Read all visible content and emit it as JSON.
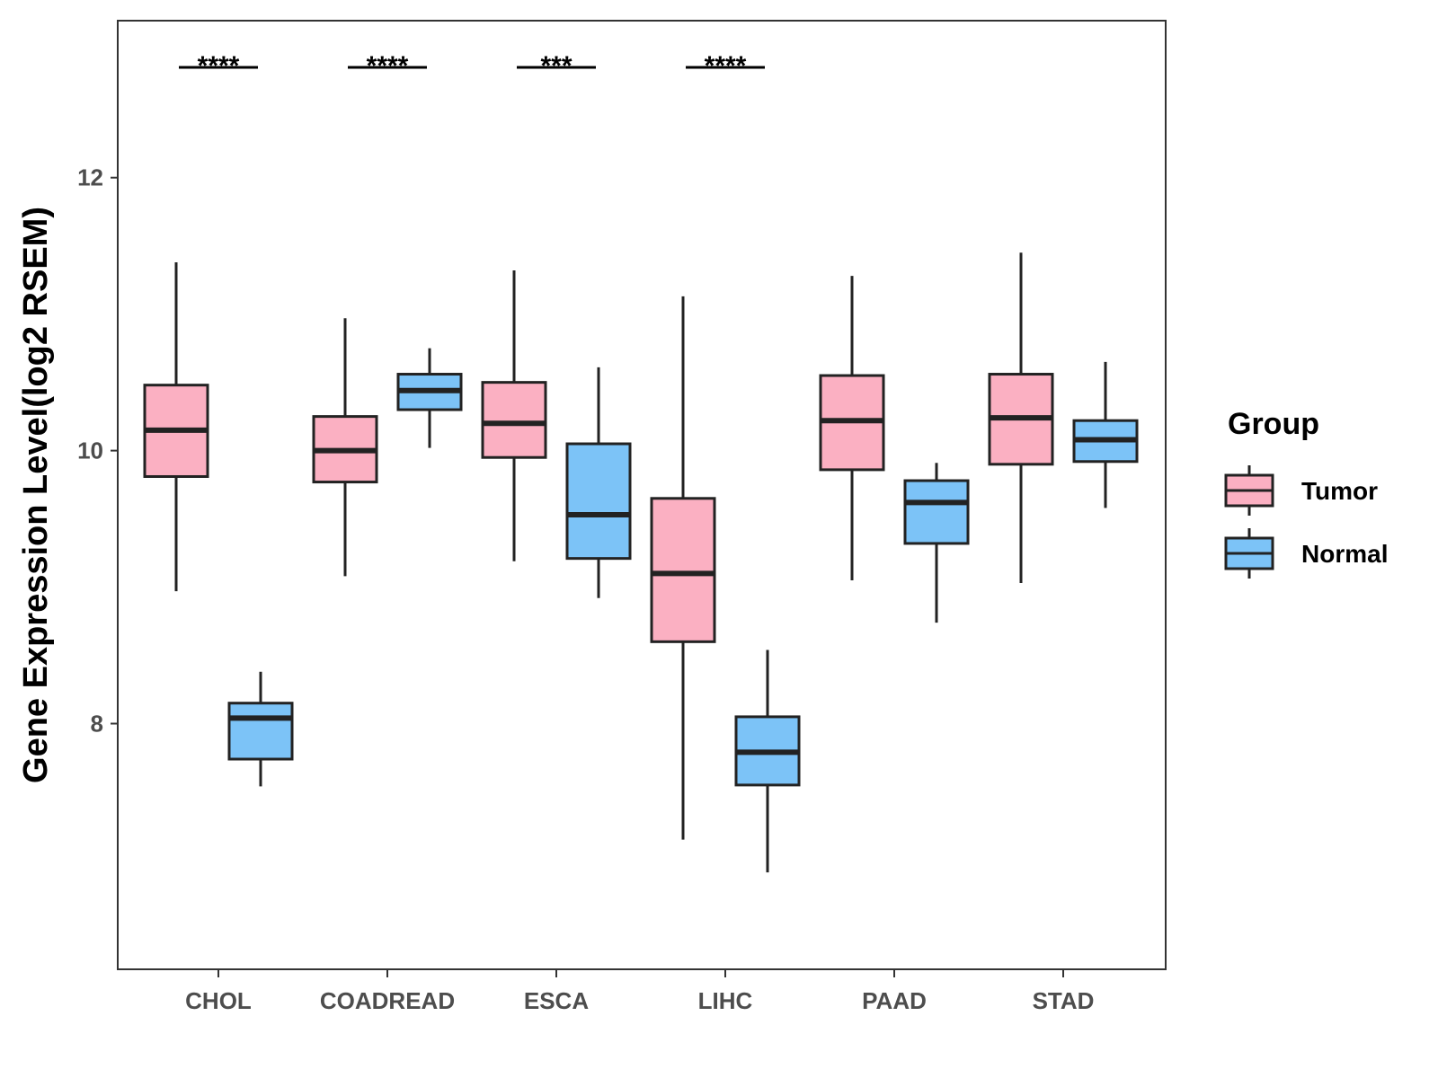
{
  "chart_data": {
    "type": "box",
    "title": "",
    "xlabel": "",
    "ylabel": "Gene Expression Level(log2 RSEM)",
    "ylim": [
      6.2,
      13.15
    ],
    "yticks": [
      8,
      10,
      12
    ],
    "grid": false,
    "categories": [
      "CHOL",
      "COADREAD",
      "ESCA",
      "LIHC",
      "PAAD",
      "STAD"
    ],
    "series": [
      {
        "name": "Tumor",
        "color": "#FBB0C2",
        "boxes": [
          {
            "min": 8.97,
            "q1": 9.81,
            "median": 10.15,
            "q3": 10.48,
            "max": 11.38
          },
          {
            "min": 9.08,
            "q1": 9.77,
            "median": 10.0,
            "q3": 10.25,
            "max": 10.97
          },
          {
            "min": 9.19,
            "q1": 9.95,
            "median": 10.2,
            "q3": 10.5,
            "max": 11.32
          },
          {
            "min": 7.15,
            "q1": 8.6,
            "median": 9.1,
            "q3": 9.65,
            "max": 11.13
          },
          {
            "min": 9.05,
            "q1": 9.86,
            "median": 10.22,
            "q3": 10.55,
            "max": 11.28
          },
          {
            "min": 9.03,
            "q1": 9.9,
            "median": 10.24,
            "q3": 10.56,
            "max": 11.45
          }
        ]
      },
      {
        "name": "Normal",
        "color": "#7CC3F7",
        "boxes": [
          {
            "min": 7.54,
            "q1": 7.74,
            "median": 8.04,
            "q3": 8.15,
            "max": 8.38
          },
          {
            "min": 10.02,
            "q1": 10.3,
            "median": 10.44,
            "q3": 10.56,
            "max": 10.75
          },
          {
            "min": 8.92,
            "q1": 9.21,
            "median": 9.53,
            "q3": 10.05,
            "max": 10.61
          },
          {
            "min": 6.91,
            "q1": 7.55,
            "median": 7.79,
            "q3": 8.05,
            "max": 8.54
          },
          {
            "min": 8.74,
            "q1": 9.32,
            "median": 9.62,
            "q3": 9.78,
            "max": 9.91
          },
          {
            "min": 9.58,
            "q1": 9.92,
            "median": 10.08,
            "q3": 10.22,
            "max": 10.65
          }
        ]
      }
    ],
    "significance": [
      {
        "category": "CHOL",
        "label": "****"
      },
      {
        "category": "COADREAD",
        "label": "****"
      },
      {
        "category": "ESCA",
        "label": "***"
      },
      {
        "category": "LIHC",
        "label": "****"
      }
    ],
    "legend": {
      "title": "Group",
      "position": "right",
      "entries": [
        "Tumor",
        "Normal"
      ]
    }
  }
}
